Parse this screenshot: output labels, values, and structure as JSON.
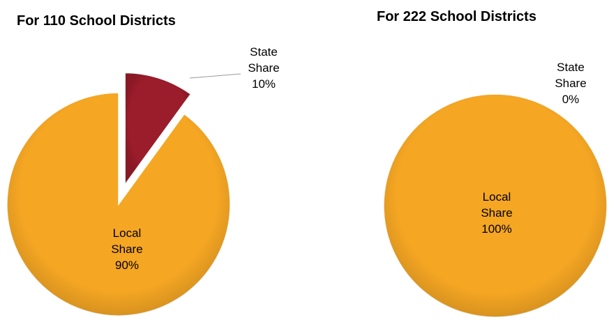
{
  "chart_data": [
    {
      "type": "pie",
      "title": "For 110 School Districts",
      "categories": [
        "State Share",
        "Local Share"
      ],
      "values": [
        10,
        90
      ],
      "value_labels": [
        "10%",
        "90%"
      ],
      "colors": [
        "#9b1c2a",
        "#f5a623"
      ]
    },
    {
      "type": "pie",
      "title": "For 222 School Districts",
      "categories": [
        "State Share",
        "Local Share"
      ],
      "values": [
        0,
        100
      ],
      "value_labels": [
        "0%",
        "100%"
      ],
      "colors": [
        "#9b1c2a",
        "#f5a623"
      ]
    }
  ]
}
